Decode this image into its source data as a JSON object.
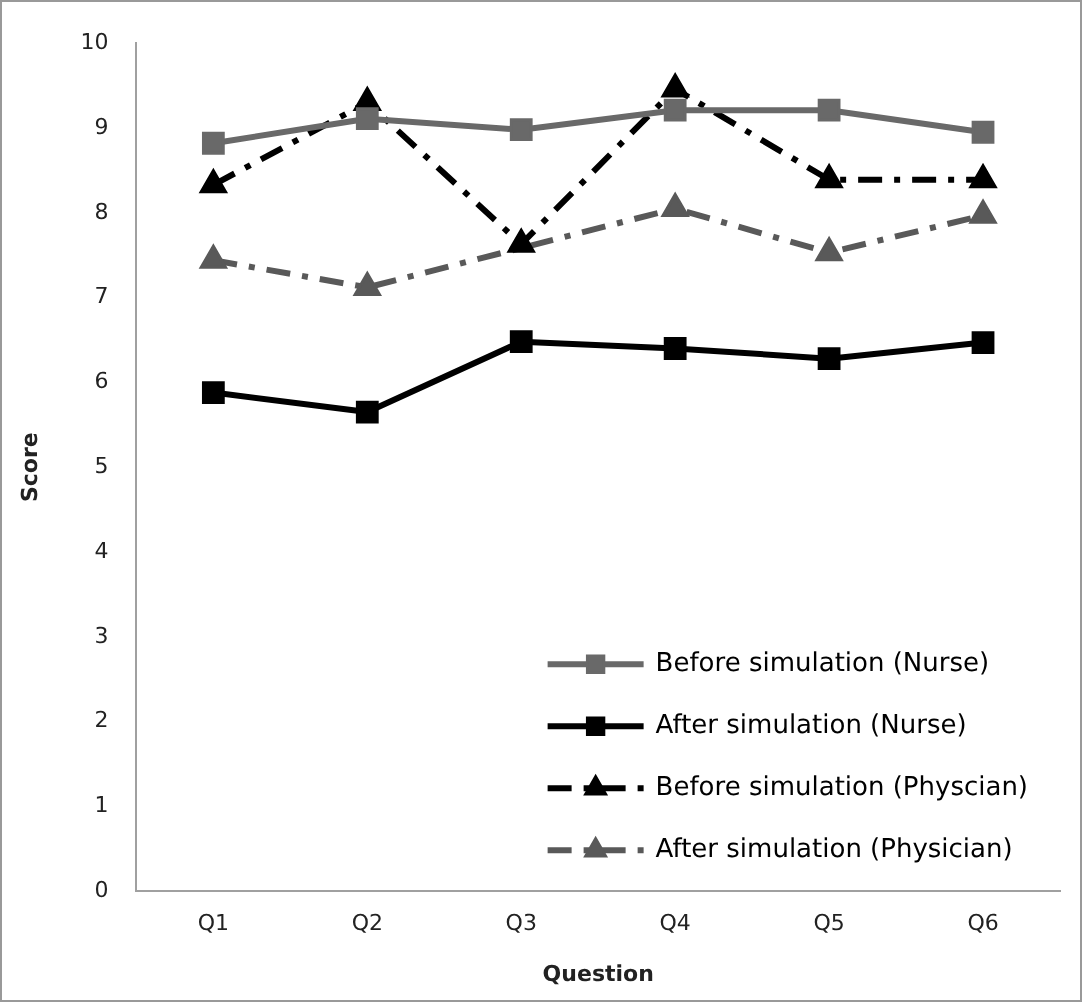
{
  "chart_data": {
    "type": "line",
    "xlabel": "Question",
    "ylabel": "Score",
    "categories": [
      "Q1",
      "Q2",
      "Q3",
      "Q4",
      "Q5",
      "Q6"
    ],
    "ylim": [
      0,
      10
    ],
    "yticks": [
      0,
      1,
      2,
      3,
      4,
      5,
      6,
      7,
      8,
      9,
      10
    ],
    "grid": false,
    "legend": "bottom right",
    "series": [
      {
        "name": "Before simulation (Nurse)",
        "color": "#696969",
        "marker": "square",
        "line_style": "solid",
        "values": [
          8.82,
          9.11,
          8.98,
          9.21,
          9.21,
          8.95
        ]
      },
      {
        "name": "After simulation (Nurse)",
        "color": "#000000",
        "marker": "square",
        "line_style": "solid",
        "values": [
          5.88,
          5.65,
          6.48,
          6.4,
          6.28,
          6.47
        ]
      },
      {
        "name": "Before simulation (Physcian)",
        "color": "#000000",
        "marker": "triangle",
        "line_style": "dashed",
        "values": [
          8.33,
          9.3,
          7.63,
          9.46,
          8.39,
          8.39
        ]
      },
      {
        "name": "After simulation (Physician)",
        "color": "#595959",
        "marker": "triangle",
        "line_style": "dashed",
        "values": [
          7.44,
          7.12,
          null,
          8.05,
          7.53,
          7.97
        ]
      }
    ]
  }
}
